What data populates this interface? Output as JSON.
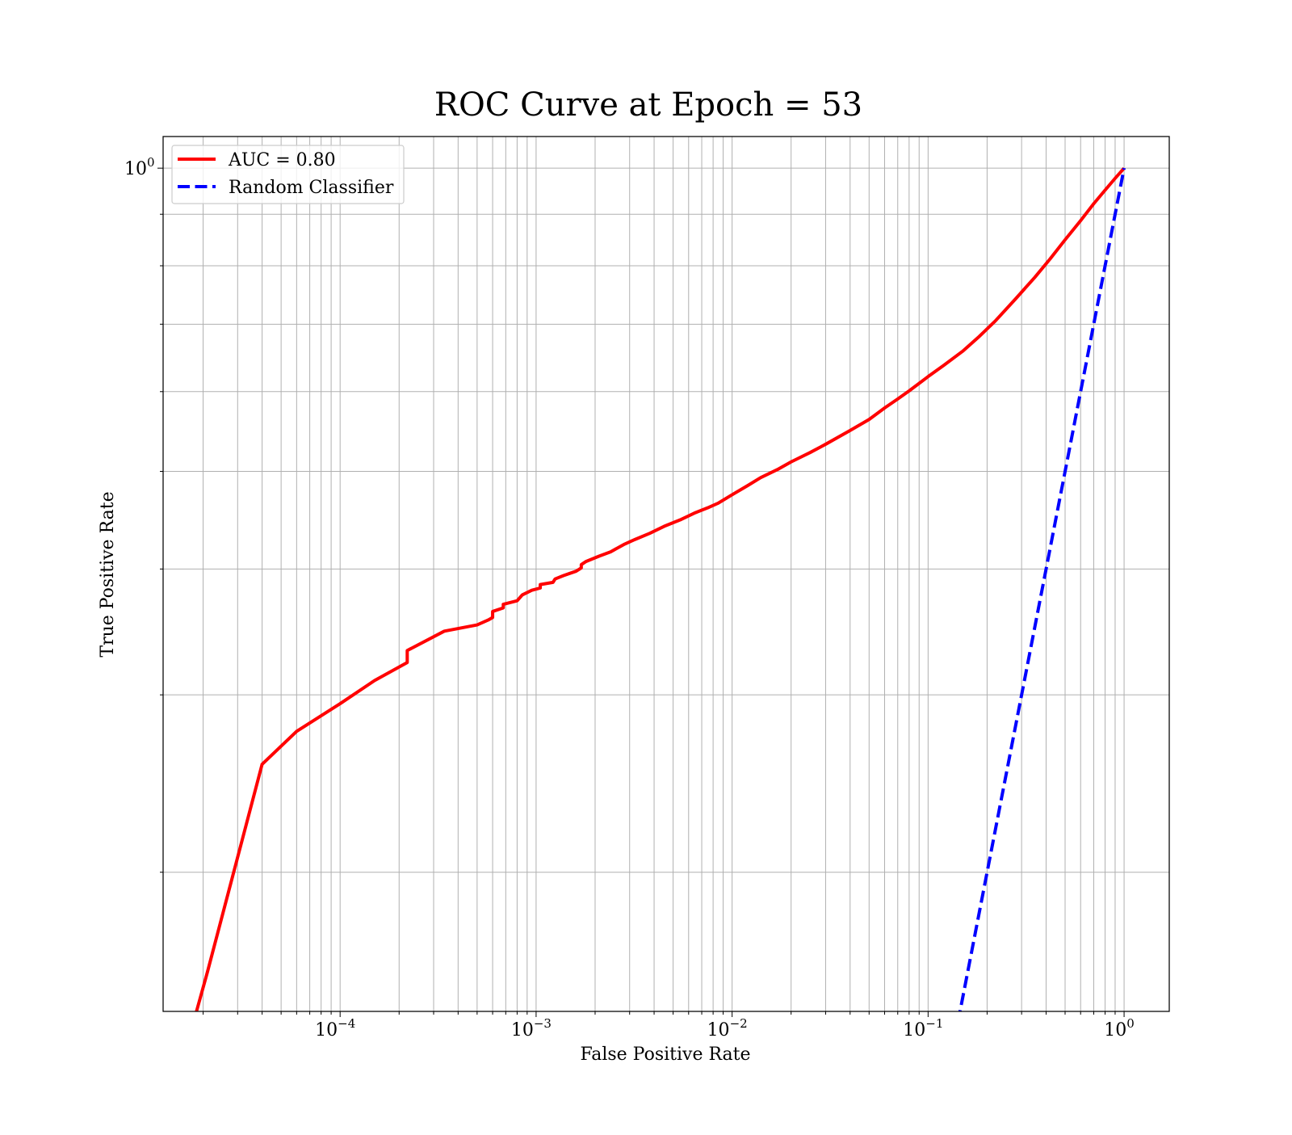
{
  "chart_data": {
    "type": "line",
    "title": "ROC Curve at Epoch = 53",
    "xlabel": "False Positive Rate",
    "ylabel": "True Positive Rate",
    "xscale": "log",
    "yscale": "log",
    "xlim": [
      1.25e-05,
      1.7
    ],
    "ylim": [
      0.1455,
      1.075
    ],
    "grid": true,
    "grid_minor": true,
    "legend_position": "top-left",
    "x_ticks": [
      {
        "base": "10",
        "exp": "−4",
        "value": 0.0001
      },
      {
        "base": "10",
        "exp": "−3",
        "value": 0.001
      },
      {
        "base": "10",
        "exp": "−2",
        "value": 0.01
      },
      {
        "base": "10",
        "exp": "−1",
        "value": 0.1
      },
      {
        "base": "10",
        "exp": "0",
        "value": 1
      }
    ],
    "y_ticks": [
      {
        "base": "10",
        "exp": "0",
        "value": 1
      }
    ],
    "series": [
      {
        "name": "AUC = 0.80",
        "color": "#ff0000",
        "style": "solid",
        "x": [
          1.85e-05,
          2.1e-05,
          4e-05,
          6e-05,
          0.0001,
          0.00015,
          0.00022,
          0.00022,
          0.00034,
          0.0005,
          0.00057,
          0.0006,
          0.0006,
          0.00068,
          0.00068,
          0.0008,
          0.00085,
          0.00095,
          0.00105,
          0.00105,
          0.00122,
          0.00125,
          0.00138,
          0.0016,
          0.0017,
          0.0017,
          0.0018,
          0.0021,
          0.0024,
          0.0028,
          0.0032,
          0.0038,
          0.0045,
          0.0055,
          0.0065,
          0.0075,
          0.0085,
          0.01,
          0.012,
          0.014,
          0.017,
          0.02,
          0.025,
          0.03,
          0.04,
          0.05,
          0.06,
          0.07,
          0.08,
          0.1,
          0.12,
          0.15,
          0.18,
          0.22,
          0.28,
          0.35,
          0.42,
          0.5,
          0.6,
          0.7,
          0.8,
          0.9,
          1.0
        ],
        "y": [
          0.1455,
          0.159,
          0.256,
          0.276,
          0.294,
          0.31,
          0.323,
          0.332,
          0.347,
          0.352,
          0.356,
          0.358,
          0.363,
          0.366,
          0.369,
          0.372,
          0.377,
          0.381,
          0.383,
          0.386,
          0.388,
          0.391,
          0.394,
          0.398,
          0.401,
          0.404,
          0.407,
          0.412,
          0.416,
          0.423,
          0.428,
          0.434,
          0.441,
          0.448,
          0.455,
          0.46,
          0.465,
          0.474,
          0.484,
          0.493,
          0.502,
          0.511,
          0.522,
          0.532,
          0.549,
          0.563,
          0.578,
          0.59,
          0.601,
          0.621,
          0.637,
          0.658,
          0.679,
          0.705,
          0.742,
          0.779,
          0.813,
          0.849,
          0.887,
          0.922,
          0.951,
          0.977,
          1.0
        ]
      },
      {
        "name": "Random Classifier",
        "color": "#0000ff",
        "style": "dashed",
        "x": [
          0.1,
          1.0
        ],
        "y": [
          0.1,
          1.0
        ]
      }
    ]
  }
}
